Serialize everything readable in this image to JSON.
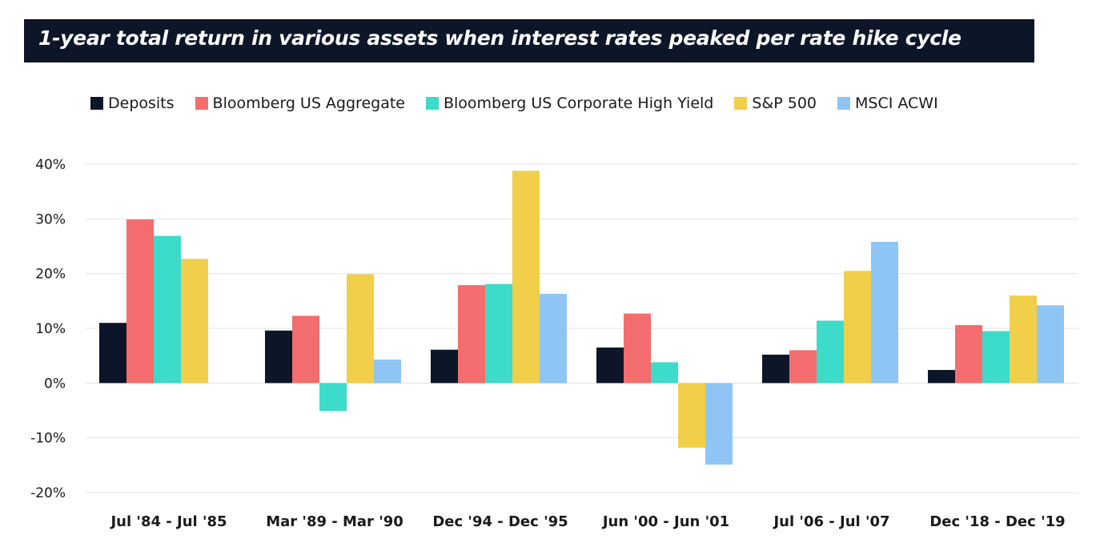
{
  "chart_data": {
    "type": "bar",
    "title": "1-year total return in various assets when interest rates peaked per rate hike cycle",
    "categories": [
      "Jul '84 - Jul '85",
      "Mar '89 - Mar '90",
      "Dec '94 - Dec '95",
      "Jun '00 - Jun '01",
      "Jul '06 - Jul '07",
      "Dec '18 - Dec '19"
    ],
    "series": [
      {
        "name": "Deposits",
        "color": "#0d1628",
        "values": [
          11.0,
          9.6,
          6.1,
          6.5,
          5.2,
          2.4
        ]
      },
      {
        "name": "Bloomberg US Aggregate",
        "color": "#f46d6e",
        "values": [
          29.9,
          12.3,
          17.9,
          12.7,
          6.0,
          10.6
        ]
      },
      {
        "name": "Bloomberg US Corporate High Yield",
        "color": "#3ddbc9",
        "values": [
          26.9,
          -5.1,
          18.1,
          3.8,
          11.4,
          9.5
        ]
      },
      {
        "name": "S&P 500",
        "color": "#f2cf4a",
        "values": [
          22.7,
          19.9,
          38.8,
          -11.8,
          20.5,
          16.0
        ]
      },
      {
        "name": "MSCI ACWI",
        "color": "#8ec5f5",
        "values": [
          null,
          4.3,
          16.3,
          -14.9,
          25.8,
          14.2
        ]
      }
    ],
    "xlabel": "",
    "ylabel": "",
    "ylim": [
      -20,
      40
    ],
    "yticks": [
      40,
      30,
      20,
      10,
      0,
      -10,
      -20
    ],
    "ytick_labels": [
      "40%",
      "30%",
      "20%",
      "10%",
      "0%",
      "-10%",
      "-20%"
    ],
    "grid": true,
    "legend": "top"
  }
}
